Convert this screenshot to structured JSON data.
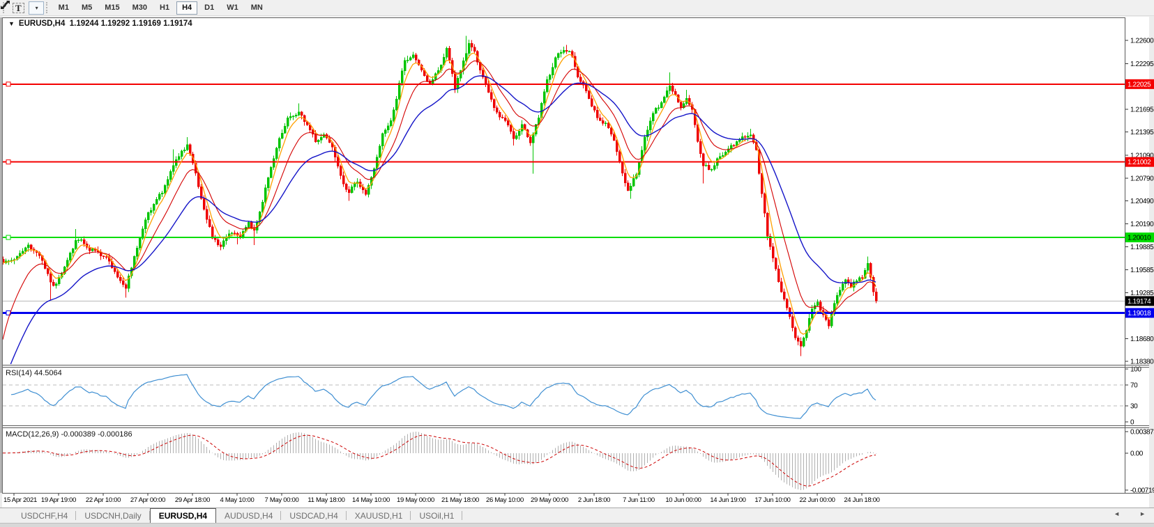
{
  "toolbar": {
    "text_tool_label": "T",
    "arrows_tool_caret": "▾",
    "timeframes": [
      {
        "label": "M1",
        "active": false
      },
      {
        "label": "M5",
        "active": false
      },
      {
        "label": "M15",
        "active": false
      },
      {
        "label": "M30",
        "active": false
      },
      {
        "label": "H1",
        "active": false
      },
      {
        "label": "H4",
        "active": true
      },
      {
        "label": "D1",
        "active": false
      },
      {
        "label": "W1",
        "active": false
      },
      {
        "label": "MN",
        "active": false
      }
    ]
  },
  "chart": {
    "menu_arrow": "▼",
    "symbol": "EURUSD,H4",
    "open": "1.19244",
    "high": "1.19292",
    "low": "1.19169",
    "close": "1.19174"
  },
  "tabs": {
    "items": [
      {
        "label": "USDCHF,H4",
        "active": false
      },
      {
        "label": "USDCNH,Daily",
        "active": false
      },
      {
        "label": "EURUSD,H4",
        "active": true
      },
      {
        "label": "AUDUSD,H4",
        "active": false
      },
      {
        "label": "USDCAD,H4",
        "active": false
      },
      {
        "label": "XAUUSD,H1",
        "active": false
      },
      {
        "label": "USOil,H1",
        "active": false
      }
    ],
    "scroll_left": "◄",
    "scroll_right": "►"
  },
  "chart_data": {
    "type": "candlestick",
    "symbol": "EURUSD",
    "timeframe": "H4",
    "candle_count": 314,
    "colors": {
      "up": "#00c400",
      "down": "#ee0000",
      "background": "#ffffff",
      "border": "#5a5a5a"
    },
    "y_axis": {
      "price_top": 1.22893,
      "price_bottom": 1.18345,
      "labels": [
        "1.22600",
        "1.22295",
        "1.21995",
        "1.21695",
        "1.21395",
        "1.21090",
        "1.20790",
        "1.20490",
        "1.20190",
        "1.19885",
        "1.19585",
        "1.19285",
        "1.18985",
        "1.18680",
        "1.18380"
      ]
    },
    "x_axis": {
      "labels": [
        "15 Apr 2021",
        "19 Apr 19:00",
        "22 Apr 10:00",
        "27 Apr 00:00",
        "29 Apr 18:00",
        "4 May 10:00",
        "7 May 00:00",
        "11 May 18:00",
        "14 May 10:00",
        "19 May 00:00",
        "21 May 18:00",
        "26 May 10:00",
        "29 May 00:00",
        "2 Jun 18:00",
        "7 Jun 11:00",
        "10 Jun 00:00",
        "14 Jun 19:00",
        "17 Jun 10:00",
        "22 Jun 00:00",
        "24 Jun 18:00"
      ]
    },
    "h_lines": [
      {
        "price": 1.22025,
        "label": "1.22025",
        "color": "#f40000",
        "width": 2,
        "text_color": "#ffffff"
      },
      {
        "price": 1.21002,
        "label": "1.21002",
        "color": "#f40000",
        "width": 2,
        "text_color": "#ffffff"
      },
      {
        "price": 1.2001,
        "label": "1.20010",
        "color": "#00dd00",
        "width": 2,
        "text_color": "#000000"
      },
      {
        "price": 1.19018,
        "label": "1.19018",
        "color": "#0000ee",
        "width": 3,
        "text_color": "#ffffff"
      }
    ],
    "current_price": {
      "value": 1.19174,
      "label": "1.19174",
      "line_color": "#b8b8b8",
      "badge_color": "#000000",
      "text_color": "#ffffff"
    },
    "moving_averages": [
      {
        "period": 5,
        "color": "#ffa000",
        "seed": null,
        "width": 1.3
      },
      {
        "period": 13,
        "color": "#d40000",
        "seed": 1.185,
        "width": 1.1
      },
      {
        "period": 30,
        "color": "#1515c8",
        "seed": 1.1795,
        "width": 1.4
      }
    ],
    "rsi": {
      "name": "RSI(14)",
      "period": 14,
      "value_label": "44.5064",
      "color": "#3f8fd2",
      "levels": [
        70,
        30
      ],
      "axis_labels": [
        "100",
        "70",
        "30",
        "0"
      ]
    },
    "macd": {
      "name": "MACD(12,26,9)",
      "fast": 12,
      "slow": 26,
      "signal": 9,
      "values_label": "-0.000389 -0.000186",
      "axis_max": "0.003873",
      "axis_zero": "0.00",
      "axis_min": "-0.007195",
      "hist_color": "#b0b0b0",
      "signal_color": "#cc0000"
    },
    "price_anchors": [
      [
        0,
        1.197
      ],
      [
        4,
        1.1972
      ],
      [
        9,
        1.1993
      ],
      [
        14,
        1.1966
      ],
      [
        18,
        1.1937
      ],
      [
        22,
        1.1962
      ],
      [
        26,
        1.2
      ],
      [
        32,
        1.1988
      ],
      [
        37,
        1.1977
      ],
      [
        41,
        1.195
      ],
      [
        44,
        1.1936
      ],
      [
        48,
        1.1988
      ],
      [
        52,
        1.2035
      ],
      [
        57,
        1.2062
      ],
      [
        61,
        1.2098
      ],
      [
        64,
        1.2115
      ],
      [
        66,
        1.2125
      ],
      [
        69,
        1.2085
      ],
      [
        72,
        1.204
      ],
      [
        75,
        1.2
      ],
      [
        78,
        1.1991
      ],
      [
        82,
        1.2013
      ],
      [
        85,
        1.2
      ],
      [
        88,
        1.2022
      ],
      [
        90,
        1.2008
      ],
      [
        93,
        1.2045
      ],
      [
        96,
        1.2095
      ],
      [
        99,
        1.213
      ],
      [
        102,
        1.2155
      ],
      [
        106,
        1.217
      ],
      [
        109,
        1.2148
      ],
      [
        112,
        1.2125
      ],
      [
        115,
        1.214
      ],
      [
        118,
        1.212
      ],
      [
        121,
        1.208
      ],
      [
        124,
        1.2058
      ],
      [
        127,
        1.2075
      ],
      [
        130,
        1.2062
      ],
      [
        133,
        1.2095
      ],
      [
        136,
        1.214
      ],
      [
        139,
        1.216
      ],
      [
        141,
        1.218
      ],
      [
        144,
        1.2235
      ],
      [
        147,
        1.2238
      ],
      [
        150,
        1.2222
      ],
      [
        153,
        1.2205
      ],
      [
        156,
        1.2225
      ],
      [
        159,
        1.2248
      ],
      [
        162,
        1.22
      ],
      [
        165,
        1.2235
      ],
      [
        167,
        1.2255
      ],
      [
        169,
        1.2245
      ],
      [
        171,
        1.2225
      ],
      [
        174,
        1.219
      ],
      [
        177,
        1.2165
      ],
      [
        180,
        1.2155
      ],
      [
        183,
        1.213
      ],
      [
        186,
        1.2148
      ],
      [
        189,
        1.2128
      ],
      [
        192,
        1.2162
      ],
      [
        195,
        1.221
      ],
      [
        198,
        1.2238
      ],
      [
        201,
        1.2247
      ],
      [
        204,
        1.2235
      ],
      [
        207,
        1.2208
      ],
      [
        210,
        1.218
      ],
      [
        213,
        1.216
      ],
      [
        216,
        1.215
      ],
      [
        219,
        1.2125
      ],
      [
        222,
        1.2085
      ],
      [
        224,
        1.2062
      ],
      [
        227,
        1.2085
      ],
      [
        230,
        1.213
      ],
      [
        233,
        1.2165
      ],
      [
        236,
        1.218
      ],
      [
        239,
        1.22
      ],
      [
        241,
        1.2185
      ],
      [
        243,
        1.217
      ],
      [
        245,
        1.2185
      ],
      [
        247,
        1.217
      ],
      [
        249,
        1.213
      ],
      [
        251,
        1.2095
      ],
      [
        254,
        1.2088
      ],
      [
        257,
        1.2105
      ],
      [
        260,
        1.212
      ],
      [
        263,
        1.2125
      ],
      [
        266,
        1.2128
      ],
      [
        268,
        1.2135
      ],
      [
        270,
        1.212
      ],
      [
        272,
        1.2062
      ],
      [
        274,
        1.2002
      ],
      [
        276,
        1.1975
      ],
      [
        278,
        1.1945
      ],
      [
        280,
        1.192
      ],
      [
        282,
        1.1895
      ],
      [
        284,
        1.187
      ],
      [
        286,
        1.1858
      ],
      [
        288,
        1.1878
      ],
      [
        290,
        1.1902
      ],
      [
        292,
        1.1916
      ],
      [
        294,
        1.1898
      ],
      [
        296,
        1.1885
      ],
      [
        298,
        1.1915
      ],
      [
        300,
        1.1935
      ],
      [
        302,
        1.1948
      ],
      [
        304,
        1.194
      ],
      [
        306,
        1.1945
      ],
      [
        308,
        1.1952
      ],
      [
        310,
        1.1972
      ],
      [
        311,
        1.1952
      ],
      [
        312,
        1.1932
      ],
      [
        313,
        1.19174
      ]
    ],
    "wick_events": [
      {
        "i": 17,
        "low": 1.1919
      },
      {
        "i": 26,
        "high": 1.2012
      },
      {
        "i": 44,
        "low": 1.1922
      },
      {
        "i": 61,
        "high": 1.2117
      },
      {
        "i": 66,
        "high": 1.2133
      },
      {
        "i": 78,
        "low": 1.1984
      },
      {
        "i": 84,
        "low": 1.1992
      },
      {
        "i": 90,
        "low": 1.1991
      },
      {
        "i": 106,
        "high": 1.2177
      },
      {
        "i": 124,
        "low": 1.2049
      },
      {
        "i": 147,
        "high": 1.2245
      },
      {
        "i": 166,
        "high": 1.2266
      },
      {
        "i": 183,
        "low": 1.2122
      },
      {
        "i": 190,
        "low": 1.2085
      },
      {
        "i": 202,
        "high": 1.2254
      },
      {
        "i": 225,
        "low": 1.2052
      },
      {
        "i": 239,
        "high": 1.2218
      },
      {
        "i": 245,
        "high": 1.2195
      },
      {
        "i": 251,
        "low": 1.2072
      },
      {
        "i": 268,
        "high": 1.2144
      },
      {
        "i": 286,
        "low": 1.1845
      },
      {
        "i": 310,
        "high": 1.1976
      }
    ]
  }
}
